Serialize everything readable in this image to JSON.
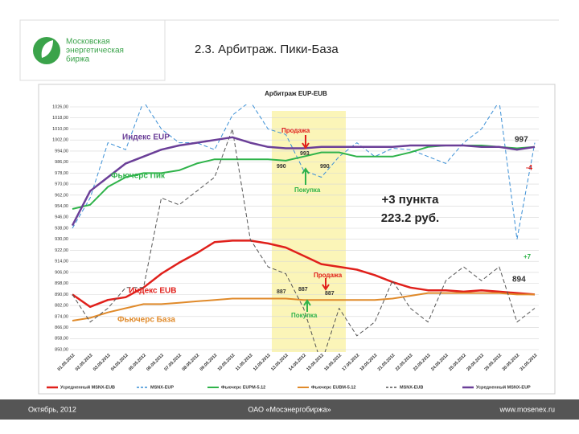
{
  "logo_text": [
    "Московская",
    "энергетическая",
    "биржа"
  ],
  "slide_title": "2.3. Арбитраж. Пики-База",
  "footer": {
    "date": "Октябрь, 2012",
    "company": "ОАО «Мосэнергобиржа»",
    "site": "www.mosenex.ru"
  },
  "chart_data": {
    "type": "line",
    "title": "Арбитраж EUP-EUB",
    "categories": [
      "01.05.2012",
      "02.05.2012",
      "03.05.2012",
      "04.05.2012",
      "05.05.2012",
      "06.05.2012",
      "07.05.2012",
      "08.05.2012",
      "09.05.2012",
      "10.05.2012",
      "11.05.2012",
      "12.05.2012",
      "13.05.2012",
      "14.05.2012",
      "15.05.2012",
      "16.05.2012",
      "17.05.2012",
      "18.05.2012",
      "21.05.2012",
      "22.05.2012",
      "23.05.2012",
      "24.05.2012",
      "25.05.2012",
      "28.05.2012",
      "29.05.2012",
      "30.05.2012",
      "31.05.2012"
    ],
    "series": [
      {
        "name": "Усредненный MSNX-EUB",
        "color": "#e0201b",
        "dashed": false,
        "width": 2.5,
        "values": [
          890,
          881,
          886,
          888,
          895,
          905,
          913,
          920,
          928,
          929,
          929,
          927,
          924,
          918,
          912,
          910,
          908,
          904,
          899,
          895,
          893,
          893,
          892,
          893,
          892,
          891,
          890
        ]
      },
      {
        "name": "MSNX-EUP",
        "color": "#3a8fd6",
        "dashed": true,
        "width": 1,
        "values": [
          938,
          960,
          1000,
          995,
          1030,
          1010,
          1000,
          1000,
          995,
          1020,
          1030,
          1010,
          1006,
          980,
          975,
          990,
          1000,
          990,
          996,
          995,
          990,
          985,
          1000,
          1010,
          1030,
          930,
          1000
        ]
      },
      {
        "name": "Фьючерс EUPM-5.12",
        "color": "#2fb34a",
        "dashed": false,
        "width": 2,
        "values": [
          952,
          955,
          968,
          975,
          978,
          978,
          980,
          985,
          988,
          988,
          988,
          988,
          987,
          990,
          993,
          993,
          990,
          990,
          990,
          993,
          997,
          998,
          998,
          998,
          997,
          996,
          997
        ]
      },
      {
        "name": "Фьючерс EUBM-5.12",
        "color": "#e08a2a",
        "dashed": false,
        "width": 2,
        "values": [
          871,
          873,
          877,
          880,
          883,
          883,
          884,
          885,
          886,
          887,
          887,
          887,
          887,
          886,
          886,
          886,
          886,
          886,
          887,
          889,
          891,
          891,
          891,
          891,
          891,
          890,
          890
        ]
      },
      {
        "name": "MSNX-EUB",
        "color": "#555555",
        "dashed": true,
        "width": 1,
        "values": [
          890,
          870,
          880,
          895,
          895,
          960,
          955,
          965,
          975,
          1010,
          930,
          910,
          905,
          880,
          840,
          880,
          860,
          870,
          900,
          880,
          870,
          900,
          910,
          900,
          910,
          870,
          880
        ]
      },
      {
        "name": "Усредненный MSNX-EUP",
        "color": "#6b3f98",
        "dashed": false,
        "width": 2.5,
        "values": [
          940,
          965,
          975,
          985,
          990,
          995,
          998,
          1000,
          1002,
          1004,
          1000,
          997,
          996,
          996,
          997,
          997,
          997,
          997,
          997,
          998,
          998,
          998,
          998,
          997,
          997,
          995,
          997
        ]
      }
    ],
    "ylim": [
      850,
      1026
    ],
    "yticks": [
      {
        "value": 850,
        "label": "850,00"
      },
      {
        "value": 858,
        "label": "858,00"
      },
      {
        "value": 866,
        "label": "866,00"
      },
      {
        "value": 874,
        "label": "874,00"
      },
      {
        "value": 882,
        "label": "882,00"
      },
      {
        "value": 890,
        "label": "890,00"
      },
      {
        "value": 898,
        "label": "898,00"
      },
      {
        "value": 906,
        "label": "906,00"
      },
      {
        "value": 914,
        "label": "914,00"
      },
      {
        "value": 922,
        "label": "922,00"
      },
      {
        "value": 930,
        "label": "930,00"
      },
      {
        "value": 938,
        "label": "938,00"
      },
      {
        "value": 946,
        "label": "946,00"
      },
      {
        "value": 954,
        "label": "954,00"
      },
      {
        "value": 962,
        "label": "962,00"
      },
      {
        "value": 970,
        "label": "970,00"
      },
      {
        "value": 978,
        "label": "978,00"
      },
      {
        "value": 986,
        "label": "986,00"
      },
      {
        "value": 994,
        "label": "994,00"
      },
      {
        "value": 1002,
        "label": "1002,00"
      },
      {
        "value": 1010,
        "label": "1010,00"
      },
      {
        "value": 1018,
        "label": "1018,00"
      },
      {
        "value": 1026,
        "label": "1026,00"
      }
    ],
    "grid": true,
    "legend": "bottom",
    "annotations": [
      "Индекс EUP",
      "Фьючерс Пик",
      "Индекс EUB",
      "Фьючерс База",
      "Продажа",
      "Покупка",
      "Продажа",
      "Покупка",
      "993",
      "990",
      "990",
      "887",
      "887",
      "887",
      "997",
      "-4",
      "+7",
      "894",
      "+3 пункта",
      "223.2 руб."
    ]
  }
}
